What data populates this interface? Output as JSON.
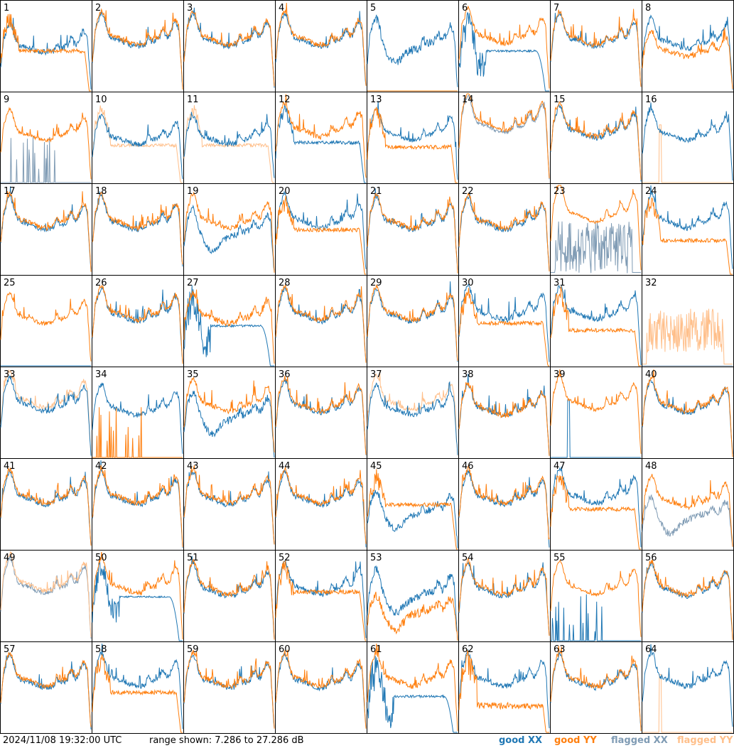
{
  "chart_data": {
    "type": "line",
    "layout": "8x8 small-multiples grid, one panel per input",
    "panel_labels": [
      "1",
      "2",
      "3",
      "4",
      "5",
      "6",
      "7",
      "8",
      "9",
      "10",
      "11",
      "12",
      "13",
      "14",
      "15",
      "16",
      "17",
      "18",
      "19",
      "20",
      "21",
      "22",
      "23",
      "24",
      "25",
      "26",
      "27",
      "28",
      "29",
      "30",
      "31",
      "32",
      "33",
      "34",
      "35",
      "36",
      "37",
      "38",
      "39",
      "40",
      "41",
      "42",
      "43",
      "44",
      "45",
      "46",
      "47",
      "48",
      "49",
      "50",
      "51",
      "52",
      "53",
      "54",
      "55",
      "56",
      "57",
      "58",
      "59",
      "60",
      "61",
      "62",
      "63",
      "64"
    ],
    "y_range_db": [
      7.286,
      27.286
    ],
    "x_points": 160,
    "series": [
      {
        "name": "good XX",
        "color": "#1f77b4"
      },
      {
        "name": "good YY",
        "color": "#ff7f0e"
      },
      {
        "name": "flagged XX",
        "color": "#7f9bb4"
      },
      {
        "name": "flagged YY",
        "color": "#ffbf8a"
      }
    ],
    "panel_shapes": {
      "1": {
        "xx": {
          "s": "std",
          "lvl": 0.5,
          "dip": 0.3,
          "n": 0.35
        },
        "yy": {
          "s": "low",
          "lvl": 0.45,
          "n": 0.3
        }
      },
      "5": {
        "xx": {
          "s": "dip",
          "lvl": 0.55,
          "n": 0.4
        },
        "yy": {
          "s": "flat0"
        }
      },
      "6": {
        "xx": {
          "s": "fall",
          "lvl": 0.5,
          "n": 0.45
        },
        "yy": {
          "s": "std",
          "lvl": 0.62,
          "n": 0.3
        }
      },
      "8": {
        "xx": {
          "s": "std",
          "lvl": 0.55,
          "n": 0.3
        },
        "yy": {
          "s": "std",
          "lvl": 0.45,
          "n": 0.3
        }
      },
      "9": {
        "xxf": {
          "s": "spikes0"
        },
        "yy": {
          "s": "std",
          "lvl": 0.55,
          "n": 0.2
        }
      },
      "10": {
        "xx": {
          "s": "std",
          "lvl": 0.5,
          "n": 0.3
        },
        "yyf": {
          "s": "low",
          "lvl": 0.42,
          "n": 0.25
        }
      },
      "11": {
        "xx": {
          "s": "std",
          "lvl": 0.5,
          "n": 0.3
        },
        "yyf": {
          "s": "low",
          "lvl": 0.42,
          "n": 0.25
        }
      },
      "12": {
        "xx": {
          "s": "low",
          "lvl": 0.45,
          "n": 0.25
        },
        "yy": {
          "s": "std",
          "lvl": 0.6,
          "n": 0.35
        }
      },
      "13": {
        "xx": {
          "s": "std",
          "lvl": 0.55,
          "n": 0.25
        },
        "yy": {
          "s": "low",
          "lvl": 0.4,
          "n": 0.3
        }
      },
      "14": {
        "xxf": {
          "s": "std",
          "lvl": 0.65,
          "n": 0.2
        },
        "yy": {
          "s": "std",
          "lvl": 0.68,
          "n": 0.2
        }
      },
      "16": {
        "xx": {
          "s": "std",
          "lvl": 0.55,
          "n": 0.25
        },
        "yyf": {
          "s": "spike1"
        }
      },
      "19": {
        "xx": {
          "s": "dip",
          "lvl": 0.5,
          "n": 0.3
        },
        "yy": {
          "s": "std",
          "lvl": 0.6,
          "n": 0.3
        }
      },
      "20": {
        "xx": {
          "s": "std",
          "lvl": 0.6,
          "n": 0.3
        },
        "yy": {
          "s": "low",
          "lvl": 0.5,
          "n": 0.3
        }
      },
      "23": {
        "xxf": {
          "s": "noise",
          "lvl": 0.3,
          "n": 0.6
        },
        "yy": {
          "s": "std",
          "lvl": 0.68,
          "n": 0.15
        }
      },
      "24": {
        "xx": {
          "s": "std",
          "lvl": 0.6,
          "n": 0.3
        },
        "yy": {
          "s": "low",
          "lvl": 0.38,
          "n": 0.3
        }
      },
      "25": {
        "xx": {
          "s": "flat0"
        },
        "yy": {
          "s": "std",
          "lvl": 0.55,
          "n": 0.25
        }
      },
      "27": {
        "xx": {
          "s": "fall",
          "lvl": 0.5,
          "n": 0.5
        },
        "yy": {
          "s": "std",
          "lvl": 0.55,
          "n": 0.35
        }
      },
      "30": {
        "xx": {
          "s": "std",
          "lvl": 0.6,
          "n": 0.35
        },
        "yy": {
          "s": "low",
          "lvl": 0.48,
          "n": 0.3
        }
      },
      "31": {
        "xx": {
          "s": "std",
          "lvl": 0.6,
          "n": 0.3
        },
        "yy": {
          "s": "low",
          "lvl": 0.4,
          "n": 0.3
        }
      },
      "32": {
        "xxf": {
          "s": "flat0"
        },
        "yyf": {
          "s": "noise",
          "lvl": 0.4,
          "n": 0.5
        }
      },
      "33": {
        "xx": {
          "s": "std",
          "lvl": 0.6,
          "n": 0.25
        },
        "yyf": {
          "s": "std",
          "lvl": 0.65,
          "n": 0.25
        }
      },
      "34": {
        "xx": {
          "s": "std",
          "lvl": 0.55,
          "n": 0.3
        },
        "yy": {
          "s": "spikes0"
        }
      },
      "35": {
        "xx": {
          "s": "dip",
          "lvl": 0.5,
          "n": 0.35
        },
        "yy": {
          "s": "std",
          "lvl": 0.6,
          "n": 0.3
        }
      },
      "37": {
        "xx": {
          "s": "std",
          "lvl": 0.55,
          "n": 0.25
        },
        "yyf": {
          "s": "std",
          "lvl": 0.62,
          "n": 0.25
        }
      },
      "38": {
        "xx": {
          "s": "std",
          "lvl": 0.55,
          "n": 0.3
        },
        "yy": {
          "s": "std",
          "lvl": 0.55,
          "n": 0.3
        }
      },
      "39": {
        "xx": {
          "s": "spike1"
        },
        "yy": {
          "s": "std",
          "lvl": 0.62,
          "n": 0.2
        }
      },
      "45": {
        "xx": {
          "s": "dip",
          "lvl": 0.45,
          "n": 0.35
        },
        "yy": {
          "s": "low",
          "lvl": 0.5,
          "n": 0.3
        }
      },
      "47": {
        "xx": {
          "s": "std",
          "lvl": 0.6,
          "n": 0.3
        },
        "yy": {
          "s": "low",
          "lvl": 0.45,
          "n": 0.3
        }
      },
      "48": {
        "xxf": {
          "s": "dip",
          "lvl": 0.4,
          "n": 0.3
        },
        "yy": {
          "s": "std",
          "lvl": 0.55,
          "n": 0.3
        }
      },
      "49": {
        "xxf": {
          "s": "std",
          "lvl": 0.62,
          "n": 0.25
        },
        "yyf": {
          "s": "std",
          "lvl": 0.65,
          "n": 0.25
        }
      },
      "50": {
        "xx": {
          "s": "fall",
          "lvl": 0.55,
          "n": 0.35
        },
        "yy": {
          "s": "std",
          "lvl": 0.62,
          "n": 0.3
        }
      },
      "52": {
        "xx": {
          "s": "std",
          "lvl": 0.6,
          "n": 0.3
        },
        "yy": {
          "s": "low",
          "lvl": 0.55,
          "n": 0.3
        }
      },
      "53": {
        "xx": {
          "s": "dip",
          "lvl": 0.55,
          "n": 0.35
        },
        "yy": {
          "s": "dip",
          "lvl": 0.35,
          "n": 0.4
        }
      },
      "55": {
        "xx": {
          "s": "spikes0"
        },
        "yy": {
          "s": "std",
          "lvl": 0.6,
          "n": 0.15
        }
      },
      "58": {
        "xx": {
          "s": "std",
          "lvl": 0.6,
          "n": 0.3
        },
        "yy": {
          "s": "low",
          "lvl": 0.45,
          "n": 0.3
        }
      },
      "61": {
        "xx": {
          "s": "fall",
          "lvl": 0.45,
          "n": 0.55
        },
        "yy": {
          "s": "std",
          "lvl": 0.6,
          "n": 0.35
        }
      },
      "62": {
        "xx": {
          "s": "std",
          "lvl": 0.6,
          "n": 0.3
        },
        "yy": {
          "s": "low",
          "lvl": 0.3,
          "n": 0.5
        }
      },
      "64": {
        "xx": {
          "s": "std",
          "lvl": 0.6,
          "n": 0.3
        },
        "yyf": {
          "s": "spike1"
        }
      }
    }
  },
  "footer": {
    "timestamp": "2024/11/08 19:32:00 UTC",
    "range": "range shown: 7.286 to 27.286 dB",
    "legend": [
      {
        "label": "good XX",
        "color": "#1f77b4"
      },
      {
        "label": "good YY",
        "color": "#ff7f0e"
      },
      {
        "label": "flagged XX",
        "color": "#7f9bb4"
      },
      {
        "label": "flagged YY",
        "color": "#ffbf8a"
      }
    ]
  }
}
